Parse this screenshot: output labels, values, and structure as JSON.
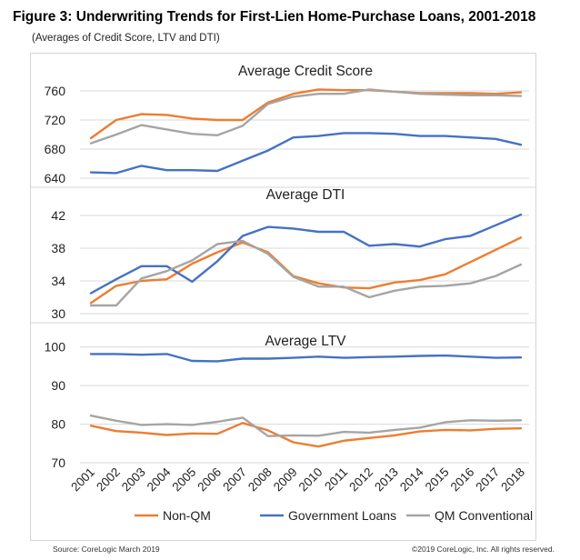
{
  "figure": {
    "title": "Figure 3: Underwriting Trends for First-Lien Home-Purchase Loans, 2001-2018",
    "subtitle": "(Averages of Credit Score, LTV and DTI)",
    "source": "Source: CoreLogic March 2019",
    "copyright": "©2019 CoreLogic, Inc. All rights reserved."
  },
  "colors": {
    "Non-QM": "#ed7d31",
    "Government Loans": "#4472c4",
    "QM Conventional": "#a5a5a5"
  },
  "chart_data": [
    {
      "type": "line",
      "title": "Average Credit Score",
      "x": [
        "2001",
        "2002",
        "2003",
        "2004",
        "2005",
        "2006",
        "2007",
        "2008",
        "2009",
        "2010",
        "2011",
        "2012",
        "2013",
        "2014",
        "2015",
        "2016",
        "2017",
        "2018"
      ],
      "ylim": [
        640,
        770
      ],
      "yticks": [
        640,
        680,
        720,
        760
      ],
      "series": [
        {
          "name": "Non-QM",
          "values": [
            695,
            720,
            728,
            727,
            722,
            720,
            720,
            744,
            756,
            762,
            761,
            761,
            759,
            757,
            757,
            757,
            756,
            758
          ]
        },
        {
          "name": "Government Loans",
          "values": [
            648,
            647,
            657,
            651,
            651,
            650,
            664,
            678,
            696,
            698,
            702,
            702,
            701,
            698,
            698,
            696,
            694,
            686
          ]
        },
        {
          "name": "QM Conventional",
          "values": [
            688,
            700,
            713,
            707,
            701,
            699,
            712,
            742,
            752,
            756,
            756,
            762,
            759,
            756,
            755,
            754,
            754,
            753
          ]
        }
      ]
    },
    {
      "type": "line",
      "title": "Average DTI",
      "x": [
        "2001",
        "2002",
        "2003",
        "2004",
        "2005",
        "2006",
        "2007",
        "2008",
        "2009",
        "2010",
        "2011",
        "2012",
        "2013",
        "2014",
        "2015",
        "2016",
        "2017",
        "2018"
      ],
      "ylim": [
        30,
        43
      ],
      "yticks": [
        30,
        34,
        38,
        42
      ],
      "series": [
        {
          "name": "Non-QM",
          "values": [
            31.3,
            33.4,
            34.0,
            34.2,
            36.1,
            37.5,
            38.7,
            37.5,
            34.6,
            33.7,
            33.2,
            33.1,
            33.8,
            34.1,
            34.8,
            36.3,
            37.8,
            39.3
          ]
        },
        {
          "name": "Government Loans",
          "values": [
            32.5,
            34.2,
            35.8,
            35.8,
            33.9,
            36.4,
            39.5,
            40.6,
            40.4,
            40.0,
            40.0,
            38.3,
            38.5,
            38.2,
            39.1,
            39.5,
            40.8,
            42.1
          ]
        },
        {
          "name": "QM Conventional",
          "values": [
            31.0,
            31.0,
            34.3,
            35.2,
            36.5,
            38.5,
            38.9,
            37.3,
            34.5,
            33.3,
            33.3,
            32.0,
            32.8,
            33.3,
            33.4,
            33.7,
            34.6,
            36.0
          ]
        }
      ]
    },
    {
      "type": "line",
      "title": "Average LTV",
      "x": [
        "2001",
        "2002",
        "2003",
        "2004",
        "2005",
        "2006",
        "2007",
        "2008",
        "2009",
        "2010",
        "2011",
        "2012",
        "2013",
        "2014",
        "2015",
        "2016",
        "2017",
        "2018"
      ],
      "ylim": [
        70,
        103
      ],
      "yticks": [
        70,
        80,
        90,
        100
      ],
      "series": [
        {
          "name": "Non-QM",
          "values": [
            79.6,
            78.2,
            77.8,
            77.2,
            77.6,
            77.5,
            80.3,
            78.4,
            75.3,
            74.2,
            75.7,
            76.4,
            77.1,
            78.1,
            78.5,
            78.4,
            78.8,
            78.9
          ]
        },
        {
          "name": "Government Loans",
          "values": [
            98.2,
            98.2,
            98.0,
            98.2,
            96.4,
            96.3,
            97.0,
            97.0,
            97.2,
            97.5,
            97.2,
            97.4,
            97.5,
            97.7,
            97.8,
            97.5,
            97.2,
            97.3
          ]
        },
        {
          "name": "QM Conventional",
          "values": [
            82.2,
            80.9,
            79.8,
            80.0,
            79.8,
            80.6,
            81.7,
            76.9,
            77.1,
            77.0,
            78.0,
            77.8,
            78.5,
            79.1,
            80.5,
            81.0,
            80.9,
            81.0
          ]
        }
      ]
    }
  ],
  "legend": {
    "position": "bottom",
    "items": [
      "Non-QM",
      "Government Loans",
      "QM Conventional"
    ]
  }
}
